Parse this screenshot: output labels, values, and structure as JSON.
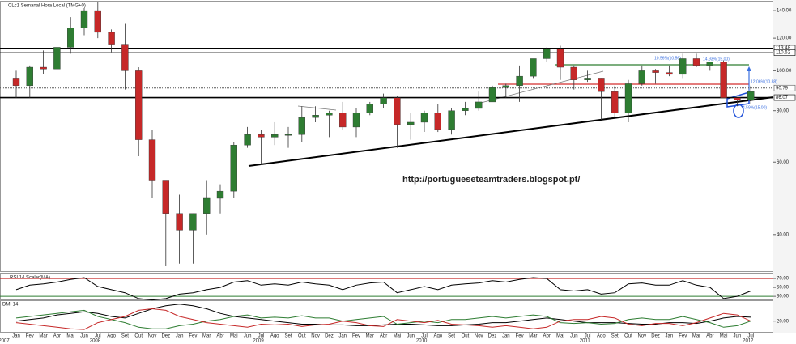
{
  "chart_data": [
    {
      "type": "candlestick",
      "title": "CLc1 Semanal Hora Local (TMG+0)",
      "log_scale": true,
      "categories": [
        "Jan",
        "Fev",
        "Mar",
        "Abr",
        "Mai",
        "Jun",
        "Jul",
        "Ago",
        "Set",
        "Out",
        "Nov",
        "Dez",
        "Jan",
        "Fev",
        "Mar",
        "Abr",
        "Mai",
        "Jun",
        "Jul",
        "Ago",
        "Set",
        "Out",
        "Nov",
        "Dez",
        "Jan",
        "Fev",
        "Mar",
        "Abr",
        "Mai",
        "Jun",
        "Jul",
        "Ago",
        "Set",
        "Out",
        "Nov",
        "Dez",
        "Jan",
        "Fev",
        "Mar",
        "Abr",
        "Mai",
        "Jun",
        "Jul",
        "Ago",
        "Set",
        "Out",
        "Nov",
        "Dez",
        "Jan",
        "Fev",
        "Mar",
        "Abr",
        "Mai",
        "Jun",
        "Jul"
      ],
      "years": [
        "2007",
        "2008",
        "2009",
        "2010",
        "2011",
        "2012"
      ],
      "open": [
        96,
        92,
        102,
        101,
        114,
        127,
        140,
        124,
        116,
        100,
        68,
        54,
        45,
        41,
        45,
        49,
        51,
        66,
        70,
        69,
        70,
        70,
        77,
        78,
        79,
        73,
        79,
        83,
        86,
        74,
        75,
        79,
        72,
        80,
        81,
        84,
        91,
        92,
        97,
        107,
        113,
        102,
        95,
        96,
        89,
        79,
        93,
        100,
        99,
        98,
        107,
        103,
        105,
        86,
        85
      ],
      "high": [
        100,
        103,
        112,
        120,
        135,
        142,
        147,
        126,
        130,
        102,
        72,
        54,
        50,
        45,
        54,
        53,
        67,
        73,
        72,
        75,
        73,
        82,
        82,
        80,
        84,
        81,
        84,
        88,
        87,
        79,
        80,
        83,
        81,
        84,
        89,
        92,
        93,
        103,
        107,
        114,
        115,
        103,
        100,
        96,
        92,
        95,
        103,
        101,
        103,
        110,
        110,
        105,
        106,
        86,
        92
      ],
      "low": [
        86,
        86,
        98,
        100,
        110,
        122,
        120,
        111,
        90,
        62,
        49,
        33.5,
        34,
        34,
        40,
        45,
        49,
        65,
        59,
        66,
        65,
        67,
        75,
        69,
        72,
        69,
        78,
        81,
        65,
        68,
        71,
        71,
        70,
        78,
        80,
        84,
        86,
        84,
        96,
        105,
        95,
        90,
        94,
        76,
        77,
        75,
        92,
        93,
        97,
        96,
        102,
        100,
        86,
        82,
        83
      ],
      "close": [
        92,
        102,
        101,
        114,
        127,
        140,
        124,
        116,
        100,
        68,
        54,
        45,
        41,
        45,
        49,
        51,
        66,
        70,
        69,
        70,
        70,
        77,
        78,
        79,
        73,
        79,
        83,
        86,
        74,
        75,
        79,
        72,
        80,
        81,
        84,
        91,
        92,
        97,
        107,
        113,
        102,
        95,
        96,
        89,
        79,
        93,
        100,
        99,
        98,
        107,
        103,
        105,
        86,
        85,
        89
      ],
      "up_color": "#2e7d32",
      "down_color": "#c62828",
      "ylim": [
        32.6,
        147.2
      ],
      "yticks": [
        {
          "value": 140,
          "label": "140.00"
        },
        {
          "value": 120,
          "label": "120.00"
        },
        {
          "value": 100,
          "label": "100.00"
        },
        {
          "value": 80,
          "label": "80.00"
        },
        {
          "value": 60,
          "label": "60.00"
        },
        {
          "value": 40,
          "label": "40.00"
        }
      ],
      "levels": [
        {
          "value": 113.48,
          "color": "#000000"
        },
        {
          "value": 110.62,
          "color": "#000000"
        },
        {
          "value": 90.79,
          "color": "#555555"
        },
        {
          "value": 86.07,
          "color": "#000000"
        }
      ],
      "annotations": [
        "http://portugueseteamtraders.blogspot.pt/",
        "10.56%(10.56)",
        "14.93%(15.00)",
        "12.06%(10.88)",
        "4.59%(15.00)"
      ]
    },
    {
      "type": "line",
      "title": "RSI 14 Scalar(MA)",
      "series": [
        {
          "color": "#000000",
          "values": [
            45,
            55,
            58,
            62,
            68,
            72,
            52,
            45,
            38,
            25,
            22,
            25,
            35,
            38,
            45,
            50,
            62,
            65,
            55,
            58,
            55,
            62,
            58,
            55,
            45,
            55,
            60,
            62,
            38,
            45,
            52,
            45,
            55,
            58,
            60,
            65,
            62,
            68,
            72,
            70,
            45,
            42,
            45,
            35,
            38,
            58,
            60,
            55,
            55,
            65,
            55,
            50,
            25,
            30,
            42
          ]
        }
      ],
      "ylim": [
        23,
        81
      ],
      "yticks": [
        {
          "value": 70,
          "label": "70.00"
        },
        {
          "value": 50,
          "label": "50.00"
        },
        {
          "value": 30,
          "label": "30.00"
        }
      ],
      "bands": [
        {
          "value": 70,
          "color": "#c62828"
        },
        {
          "value": 30,
          "color": "#2e7d32"
        }
      ]
    },
    {
      "type": "line",
      "title": "DMI 14",
      "series": [
        {
          "color": "#000000",
          "values": [
            20,
            22,
            24,
            28,
            30,
            32,
            30,
            26,
            24,
            30,
            36,
            40,
            42,
            40,
            36,
            30,
            26,
            24,
            22,
            20,
            18,
            16,
            16,
            15,
            15,
            14,
            14,
            15,
            16,
            16,
            15,
            14,
            14,
            15,
            16,
            18,
            18,
            20,
            22,
            24,
            22,
            20,
            18,
            18,
            18,
            17,
            16,
            16,
            18,
            18,
            17,
            20,
            24,
            26,
            25
          ]
        },
        {
          "color": "#2e7d32",
          "values": [
            24,
            26,
            28,
            30,
            32,
            34,
            26,
            22,
            18,
            12,
            10,
            10,
            14,
            16,
            20,
            22,
            26,
            28,
            24,
            25,
            24,
            27,
            24,
            24,
            20,
            22,
            24,
            26,
            16,
            18,
            20,
            18,
            22,
            22,
            24,
            26,
            24,
            26,
            28,
            26,
            18,
            17,
            18,
            16,
            17,
            22,
            24,
            22,
            22,
            26,
            22,
            18,
            12,
            14,
            20
          ]
        },
        {
          "color": "#c62828",
          "values": [
            18,
            16,
            14,
            12,
            10,
            9,
            18,
            22,
            26,
            34,
            36,
            34,
            26,
            22,
            18,
            16,
            14,
            12,
            16,
            15,
            16,
            13,
            15,
            16,
            20,
            18,
            14,
            13,
            22,
            20,
            18,
            21,
            16,
            15,
            14,
            12,
            14,
            12,
            10,
            12,
            20,
            22,
            22,
            26,
            24,
            16,
            14,
            17,
            17,
            14,
            18,
            24,
            30,
            28,
            20
          ]
        }
      ],
      "ylim": [
        6,
        46
      ],
      "yticks": [
        {
          "value": 20,
          "label": "20.00"
        }
      ]
    }
  ]
}
